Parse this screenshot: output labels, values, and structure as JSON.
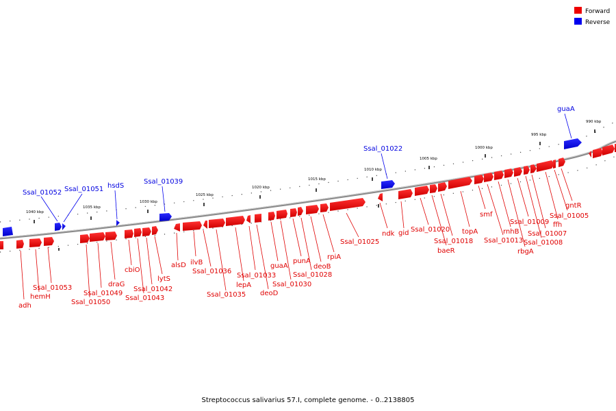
{
  "legend": {
    "forward_label": "Forward",
    "reverse_label": "Reverse",
    "forward_color": "#ee0000",
    "reverse_color": "#0000ee"
  },
  "footer": {
    "title": "Streptococcus salivarius 57.I, complete genome. - 0..2138805"
  },
  "ticks": [
    "990 kbp",
    "995 kbp",
    "1000 kbp",
    "1005 kbp",
    "1010 kbp",
    "1015 kbp",
    "1020 kbp",
    "1025 kbp",
    "1030 kbp",
    "1035 kbp",
    "1040 kbp"
  ],
  "genes": {
    "reverse": [
      "guaA",
      "Ssal_01022",
      "Ssal_01039",
      "hsdS",
      "Ssal_01051",
      "Ssal_01052"
    ],
    "forward": [
      "adh",
      "hemH",
      "Ssal_01053",
      "Ssal_01050",
      "Ssal_01049",
      "draG",
      "cbiO",
      "Ssal_01043",
      "Ssal_01042",
      "lytS",
      "alsD",
      "ilvB",
      "Ssal_01036",
      "Ssal_01035",
      "lepA",
      "Ssal_01033",
      "deoD",
      "guaA",
      "Ssal_01030",
      "punA",
      "Ssal_01028",
      "deoB",
      "rpiA",
      "Ssal_01025",
      "ndk",
      "gid",
      "Ssal_01020",
      "baeR",
      "Ssal_01018",
      "topA",
      "smf",
      "Ssal_01013",
      "rnhB",
      "rbgA",
      "Ssal_01009",
      "Ssal_01008",
      "Ssal_01007",
      "ffh",
      "Ssal_01005",
      "gntR"
    ]
  }
}
